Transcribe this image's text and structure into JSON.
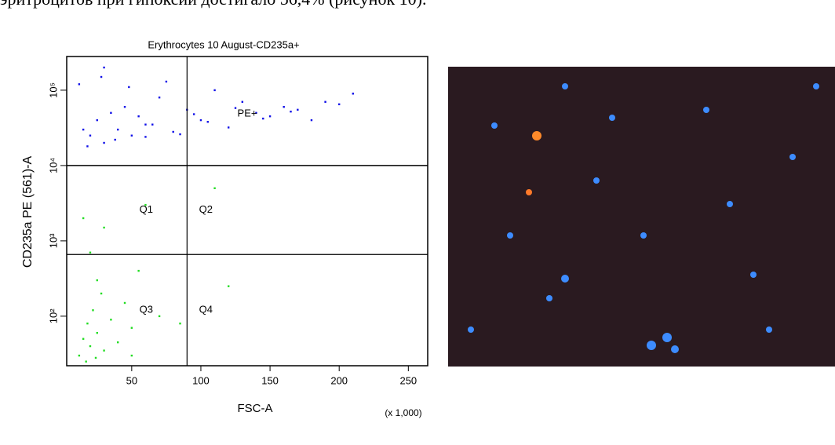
{
  "text": "эритроцитов при гипоксии достигало 56,4% (рисунок 10).",
  "figure": {
    "chart_data": {
      "type": "scatter",
      "title": "Erythrocytes 10 August-CD235a+",
      "x_label": "FSC-A",
      "y_label": "CD235a PE (561)-A",
      "x_unit_note": "(x 1,000)",
      "xlim": [
        3,
        264
      ],
      "xticks": [
        50,
        100,
        150,
        200,
        250
      ],
      "ylim": [
        22,
        280000
      ],
      "y_log": true,
      "yticks": [
        {
          "value": 100,
          "label": "10²"
        },
        {
          "value": 1000,
          "label": "10³"
        },
        {
          "value": 10000,
          "label": "10⁴"
        },
        {
          "value": 100000,
          "label": "10⁵"
        }
      ],
      "gate": {
        "label": "PE+",
        "y": 10000
      },
      "quadrants": {
        "x": 90,
        "y": 660,
        "labels": [
          "Q1",
          "Q2",
          "Q3",
          "Q4"
        ]
      },
      "series": [
        {
          "color": "#1010e8",
          "x": [
            15,
            20,
            25,
            30,
            35,
            40,
            45,
            50,
            55,
            60,
            70,
            80,
            90,
            100,
            110,
            120,
            130,
            140,
            150,
            160,
            170,
            180,
            190,
            200,
            210,
            12,
            18,
            28,
            38,
            48,
            65,
            75,
            85,
            95,
            105,
            125,
            145,
            165,
            30,
            60
          ],
          "y": [
            30000,
            25000,
            40000,
            20000,
            50000,
            30000,
            60000,
            25000,
            45000,
            35000,
            80000,
            28000,
            55000,
            40000,
            100000,
            32000,
            70000,
            50000,
            45000,
            60000,
            55000,
            40000,
            70000,
            65000,
            90000,
            120000,
            18000,
            150000,
            22000,
            110000,
            35000,
            130000,
            26000,
            48000,
            38000,
            58000,
            42000,
            52000,
            200000,
            24000
          ]
        },
        {
          "color": "#22dd22",
          "x": [
            12,
            15,
            18,
            20,
            22,
            25,
            28,
            30,
            35,
            40,
            45,
            50,
            55,
            20,
            25,
            70,
            85,
            120,
            15,
            50,
            110,
            60,
            30,
            17,
            24
          ],
          "y": [
            30,
            50,
            80,
            40,
            120,
            60,
            200,
            35,
            90,
            45,
            150,
            70,
            400,
            700,
            300,
            100,
            80,
            250,
            2000,
            30,
            5000,
            3000,
            1500,
            25,
            28
          ]
        }
      ]
    }
  }
}
